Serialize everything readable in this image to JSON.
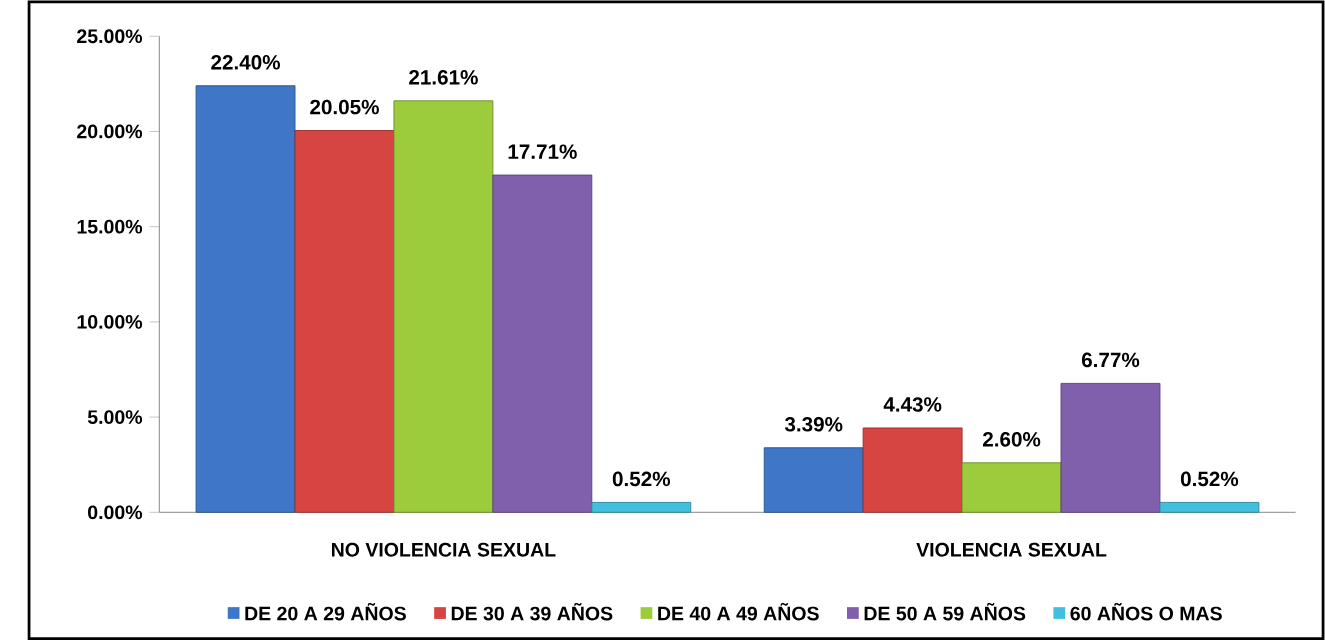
{
  "chart_data": {
    "type": "bar",
    "categories": [
      "NO VIOLENCIA SEXUAL",
      "VIOLENCIA SEXUAL"
    ],
    "series": [
      {
        "name": "DE 20 A 29 AÑOS",
        "color": "#3f76c8",
        "values": [
          22.4,
          3.39
        ],
        "value_labels": [
          "22.40%",
          "3.39%"
        ]
      },
      {
        "name": "DE 30 A 39 AÑOS",
        "color": "#d64541",
        "values": [
          20.05,
          4.43
        ],
        "value_labels": [
          "20.05%",
          "4.43%"
        ]
      },
      {
        "name": "DE 40 A 49 AÑOS",
        "color": "#9ccb3c",
        "values": [
          21.61,
          2.6
        ],
        "value_labels": [
          "21.61%",
          "2.60%"
        ]
      },
      {
        "name": "DE 50 A 59 AÑOS",
        "color": "#8060ad",
        "values": [
          17.71,
          6.77
        ],
        "value_labels": [
          "17.71%",
          "6.77%"
        ]
      },
      {
        "name": "60 AÑOS O MAS",
        "color": "#40c0dc",
        "values": [
          0.52,
          0.52
        ],
        "value_labels": [
          "0.52%",
          "0.52%"
        ]
      }
    ],
    "ylim": [
      0,
      25
    ],
    "yticks": [
      {
        "value": 0,
        "label": "0.00%"
      },
      {
        "value": 5,
        "label": "5.00%"
      },
      {
        "value": 10,
        "label": "10.00%"
      },
      {
        "value": 15,
        "label": "15.00%"
      },
      {
        "value": 20,
        "label": "20.00%"
      },
      {
        "value": 25,
        "label": "25.00%"
      }
    ],
    "legend": "bottom",
    "grid": false
  }
}
